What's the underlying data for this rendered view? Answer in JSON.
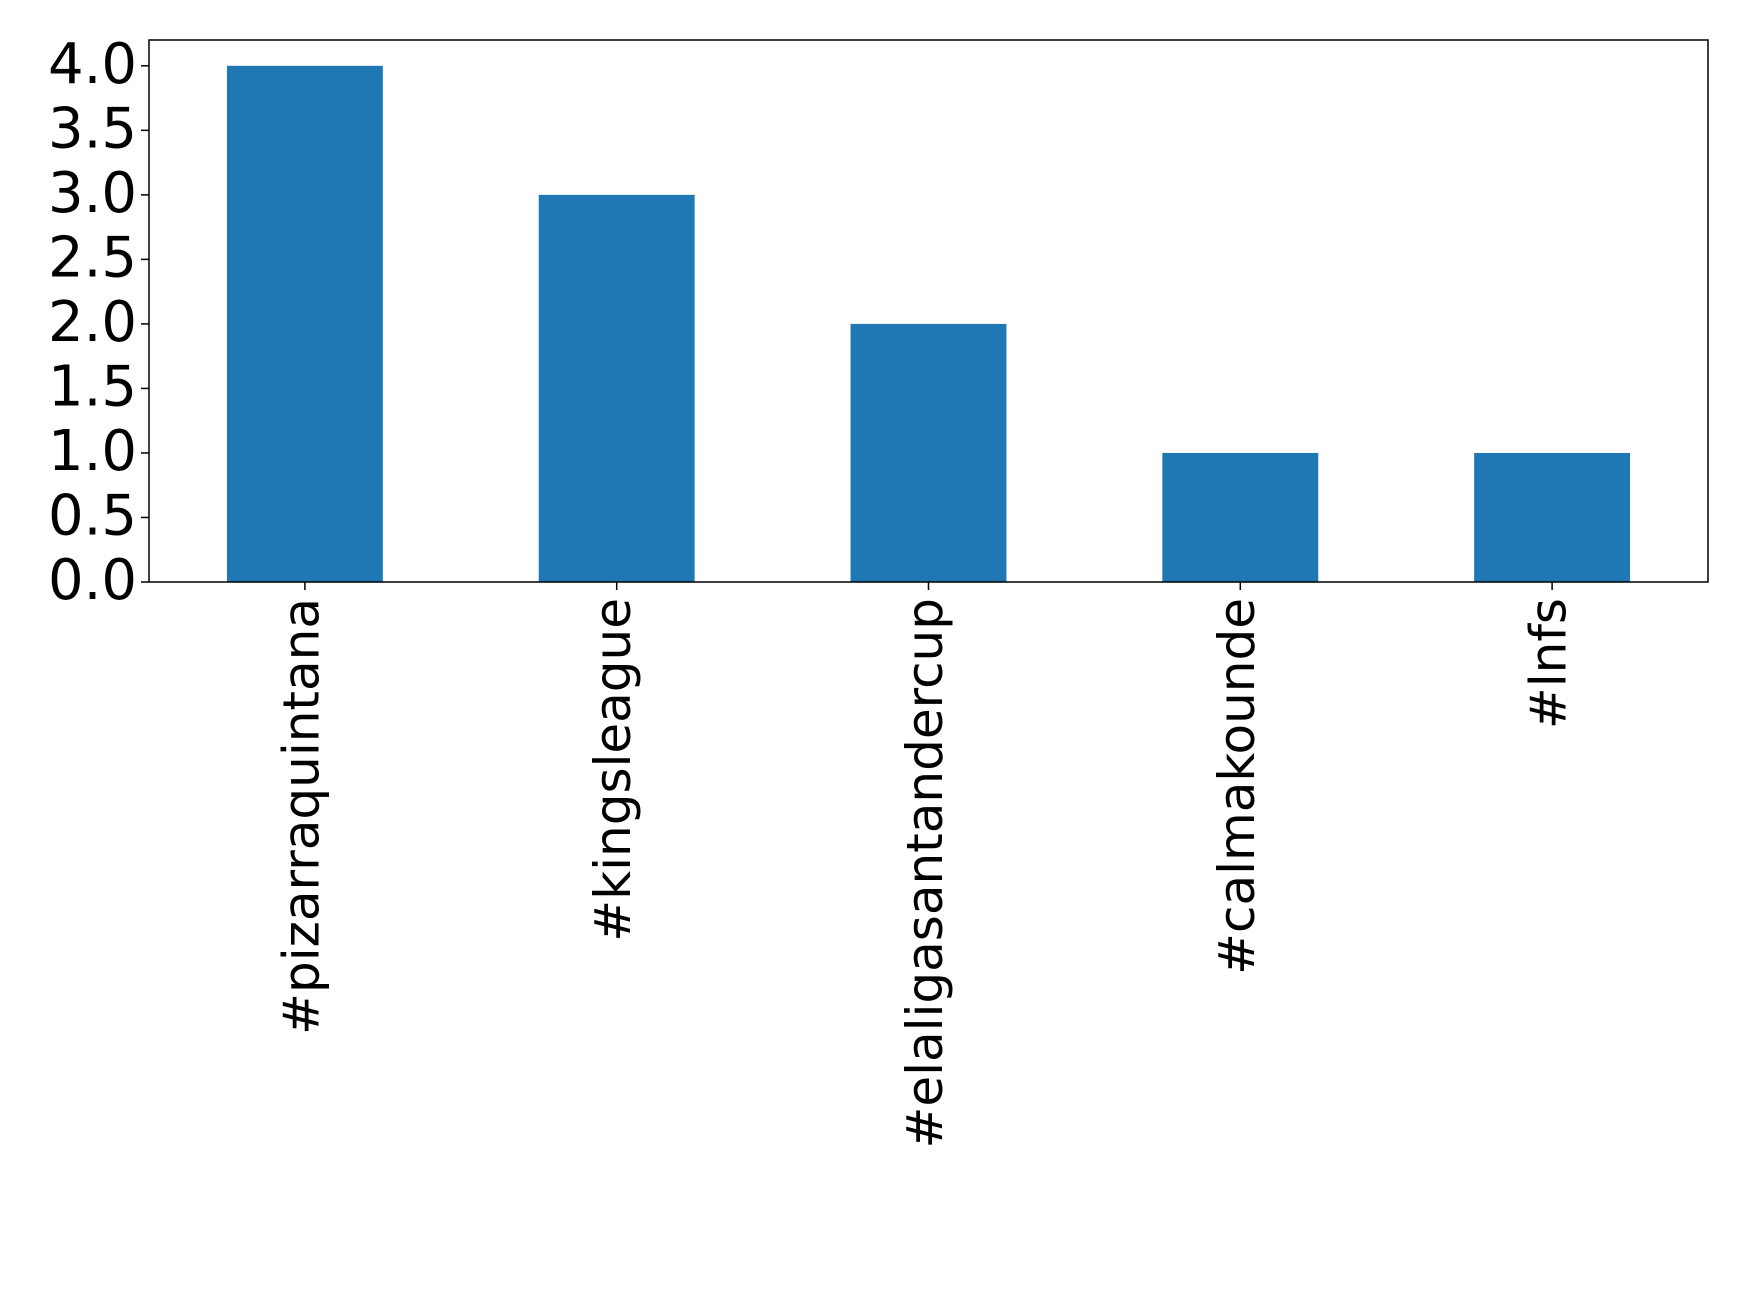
{
  "chart_data": {
    "type": "bar",
    "categories": [
      "#pizarraquintana",
      "#kingsleague",
      "#elaligasantandercup",
      "#calmakounde",
      "#lnfs"
    ],
    "values": [
      4,
      3,
      2,
      1,
      1
    ],
    "color": "#1f77b4",
    "ylim": [
      0,
      4.2
    ],
    "yticks": [
      {
        "value": 0,
        "label": "0.0"
      },
      {
        "value": 0.5,
        "label": "0.5"
      },
      {
        "value": 1,
        "label": "1.0"
      },
      {
        "value": 1.5,
        "label": "1.5"
      },
      {
        "value": 2,
        "label": "2.0"
      },
      {
        "value": 2.5,
        "label": "2.5"
      },
      {
        "value": 3,
        "label": "3.0"
      },
      {
        "value": 3.5,
        "label": "3.5"
      },
      {
        "value": 4,
        "label": "4.0"
      }
    ],
    "grid": false
  }
}
